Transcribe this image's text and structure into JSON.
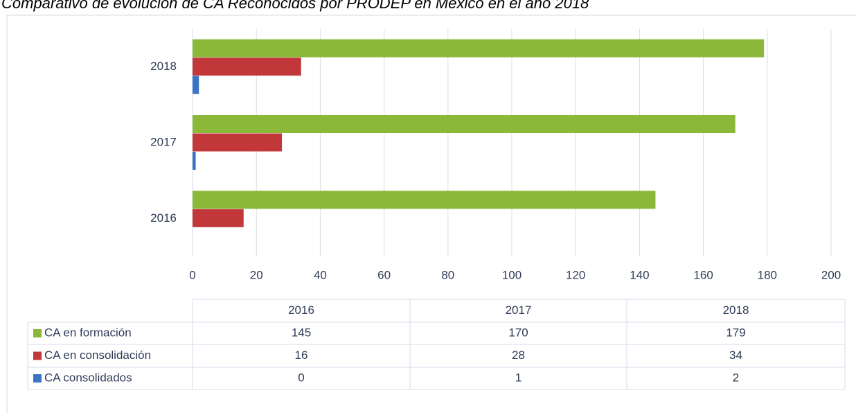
{
  "chart_data": {
    "type": "bar",
    "orientation": "horizontal",
    "title": "Comparativo de evolución de CA Reconocidos por PRODEP en México en el año 2018",
    "categories": [
      "2016",
      "2017",
      "2018"
    ],
    "series": [
      {
        "name": "CA en formación",
        "color": "#8cb83a",
        "values": [
          145,
          170,
          179
        ]
      },
      {
        "name": "CA en consolidación",
        "color": "#c2373a",
        "values": [
          16,
          28,
          34
        ]
      },
      {
        "name": "CA consolidados",
        "color": "#3b74c4",
        "values": [
          0,
          1,
          2
        ]
      }
    ],
    "xlim": [
      0,
      200
    ],
    "xticks": [
      0,
      20,
      40,
      60,
      80,
      100,
      120,
      140,
      160,
      180,
      200
    ],
    "grid": true
  }
}
